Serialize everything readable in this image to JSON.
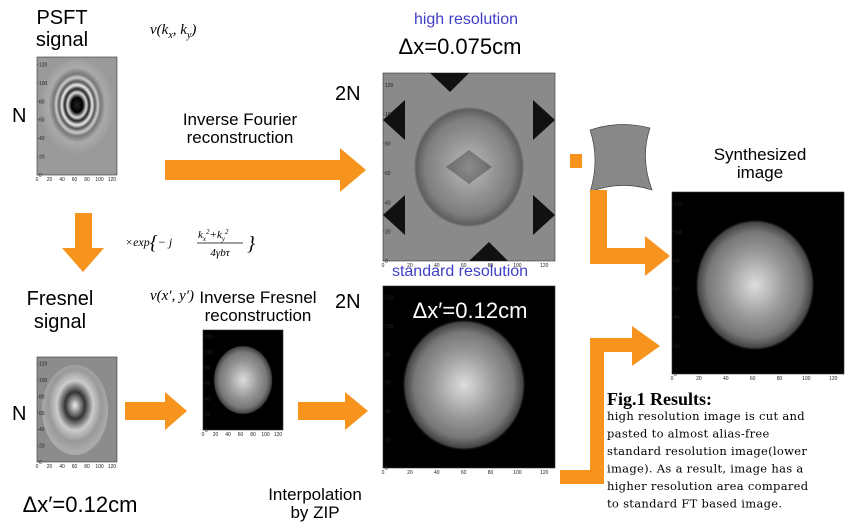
{
  "psft": {
    "title_lines": [
      "PSFT",
      "signal"
    ],
    "formula": [
      "v(k",
      "x",
      ", k",
      "y",
      ")"
    ],
    "size_label": "N"
  },
  "fourier": {
    "label_lines": [
      "Inverse Fourier",
      "reconstruction"
    ]
  },
  "high_res": {
    "title": "high resolution",
    "spacing": "Δx=0.075cm",
    "size_label": "2N"
  },
  "phase_factor": {
    "prefix": "×exp",
    "open": "{",
    "sign": "− j",
    "numerator": [
      "k",
      "x",
      "2",
      "+",
      "k",
      "y",
      "2"
    ],
    "denominator": "4γbτ",
    "close": "}"
  },
  "fresnel": {
    "title_lines": [
      "Fresnel",
      "signal"
    ],
    "formula": "v(x′, y′)",
    "size_label": "N",
    "spacing": "Δx′=0.12cm"
  },
  "fresnel_recon": {
    "label_lines": [
      "Inverse Fresnel",
      "reconstruction"
    ]
  },
  "interpolation": {
    "label_lines": [
      "Interpolation",
      "by ZIP"
    ]
  },
  "standard_res": {
    "title": "standard resolution",
    "spacing": "Δx′=0.12cm",
    "size_label": "2N"
  },
  "synthesized": {
    "label_lines": [
      "Synthesized",
      "image"
    ]
  },
  "caption": {
    "title": "Fig.1 Results:",
    "lines": [
      "high resolution image is cut and",
      "pasted to almost alias-free",
      "standard resolution image(lower",
      "image). As a result, image has a",
      "higher resolution area compared",
      "to standard FT based image."
    ]
  },
  "axis_ticks": [
    0,
    20,
    40,
    60,
    80,
    100,
    120
  ]
}
